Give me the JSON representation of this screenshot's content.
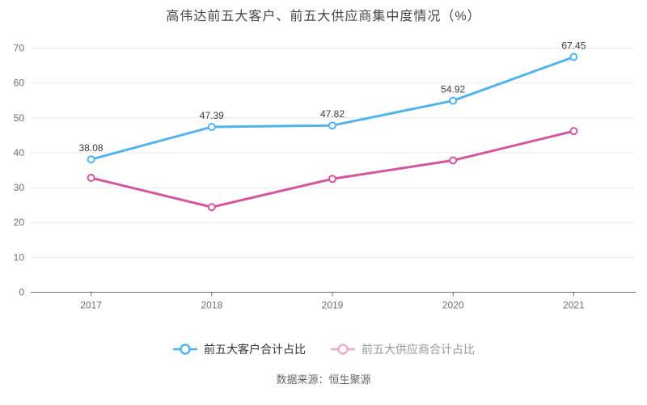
{
  "title": "高伟达前五大客户、前五大供应商集中度情况（%）",
  "source_note": "数据来源：恒生聚源",
  "colors": {
    "background": "#ffffff",
    "title_text": "#454545",
    "axis_text": "#6e7079",
    "axis_line": "#6e7079",
    "grid_line": "#e4eaf2",
    "data_label_text": "#3c3c3c",
    "source_text": "#666666"
  },
  "chart_data": {
    "type": "line",
    "title": "高伟达前五大客户、前五大供应商集中度情况（%）",
    "categories": [
      "2017",
      "2018",
      "2019",
      "2020",
      "2021"
    ],
    "series": [
      {
        "name": "前五大客户合计占比",
        "values": [
          38.08,
          47.39,
          47.82,
          54.92,
          67.45
        ],
        "data_labels": [
          "38.08",
          "47.39",
          "47.82",
          "54.92",
          "67.45"
        ],
        "color": "#53b4eb",
        "show_labels": true
      },
      {
        "name": "前五大供应商合计占比",
        "values": [
          32.8,
          24.4,
          32.5,
          37.8,
          46.2
        ],
        "data_labels": [],
        "color": "#d4569d",
        "show_labels": false
      }
    ],
    "xlabel": "",
    "ylabel": "",
    "ylim": [
      0,
      70
    ],
    "ytick_interval": 10,
    "grid": true,
    "legend_position": "bottom",
    "symbol": "hollow-circle"
  },
  "legend": {
    "items": [
      {
        "label": "前五大客户合计占比",
        "icon_color": "#53b4eb",
        "text_color": "#333333"
      },
      {
        "label": "前五大供应商合计占比",
        "icon_color": "#edaacf",
        "text_color": "#999999"
      }
    ]
  }
}
